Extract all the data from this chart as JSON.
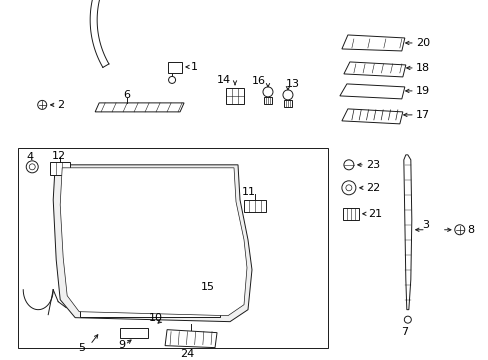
{
  "bg_color": "#ffffff",
  "lc": "#1a1a1a",
  "lw": 0.7,
  "fs": 7.5,
  "fig_w": 4.89,
  "fig_h": 3.6,
  "dpi": 100
}
